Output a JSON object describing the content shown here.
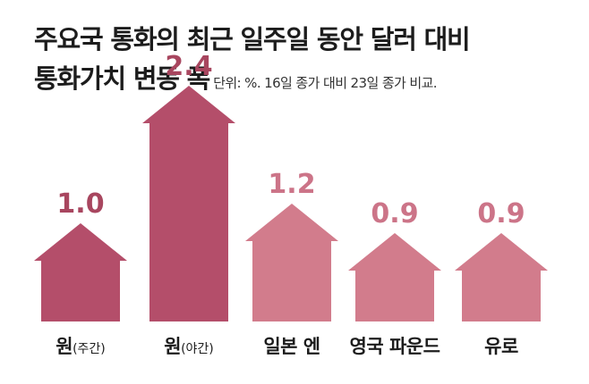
{
  "title_line1": "주요국 통화의 최근 일주일 동안 달러 대비",
  "title_line2": "통화가치 변동 폭",
  "subtitle": "단위: %. 16일 종가 대비 23일 종가 비교.",
  "chart_data": {
    "type": "bar",
    "categories": [
      {
        "main": "원",
        "sub": "(주간)"
      },
      {
        "main": "원",
        "sub": "(야간)"
      },
      {
        "main": "일본 엔",
        "sub": ""
      },
      {
        "main": "영국 파운드",
        "sub": ""
      },
      {
        "main": "유로",
        "sub": ""
      }
    ],
    "values": [
      1.0,
      2.4,
      1.2,
      0.9,
      0.9
    ],
    "value_labels": [
      "1.0",
      "2.4",
      "1.2",
      "0.9",
      "0.9"
    ],
    "colors": [
      "#b44e6a",
      "#b44e6a",
      "#d27c8c",
      "#d27c8c",
      "#d27c8c"
    ],
    "label_colors": [
      "#a8465f",
      "#a8465f",
      "#cc7488",
      "#cc7488",
      "#cc7488"
    ]
  }
}
